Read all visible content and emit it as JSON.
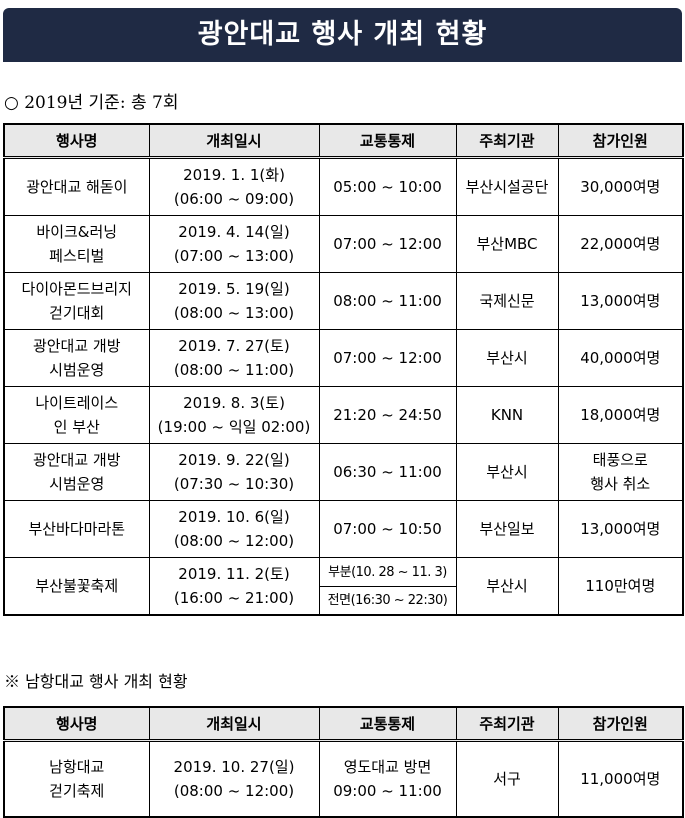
{
  "title": "광안대교 행사 개최 현황",
  "summary": "○ 2019년 기준: 총 7회",
  "headers": [
    "행사명",
    "개최일시",
    "교통통제",
    "주최기관",
    "참가인원"
  ],
  "rows": [
    {
      "name": [
        "광안대교 해돋이",
        ""
      ],
      "date": [
        "2019. 1. 1(화)",
        "(06:00 ~ 09:00)"
      ],
      "traffic": "05:00 ~ 10:00",
      "host": "부산시설공단",
      "people": [
        "30,000여명",
        ""
      ]
    },
    {
      "name": [
        "바이크&러닝",
        "페스티벌"
      ],
      "date": [
        "2019. 4. 14(일)",
        "(07:00 ~ 13:00)"
      ],
      "traffic": "07:00 ~ 12:00",
      "host": "부산MBC",
      "people": [
        "22,000여명",
        ""
      ]
    },
    {
      "name": [
        "다이아몬드브리지",
        "걷기대회"
      ],
      "date": [
        "2019. 5. 19(일)",
        "(08:00 ~ 13:00)"
      ],
      "traffic": "08:00 ~ 11:00",
      "host": "국제신문",
      "people": [
        "13,000여명",
        ""
      ]
    },
    {
      "name": [
        "광안대교 개방",
        "시범운영"
      ],
      "date": [
        "2019. 7. 27(토)",
        "(08:00 ~ 11:00)"
      ],
      "traffic": "07:00 ~ 12:00",
      "host": "부산시",
      "people": [
        "40,000여명",
        ""
      ]
    },
    {
      "name": [
        "나이트레이스",
        "인 부산"
      ],
      "date": [
        "2019. 8. 3(토)",
        "(19:00 ~ 익일 02:00)"
      ],
      "traffic": "21:20 ~ 24:50",
      "host": "KNN",
      "people": [
        "18,000여명",
        ""
      ]
    },
    {
      "name": [
        "광안대교 개방",
        "시범운영"
      ],
      "date": [
        "2019. 9. 22(일)",
        "(07:30 ~ 10:30)"
      ],
      "traffic": "06:30 ~ 11:00",
      "host": "부산시",
      "people": [
        "태풍으로",
        "행사 취소"
      ]
    },
    {
      "name": [
        "부산바다마라톤",
        ""
      ],
      "date": [
        "2019. 10. 6(일)",
        "(08:00 ~ 12:00)"
      ],
      "traffic": "07:00 ~ 10:50",
      "host": "부산일보",
      "people": [
        "13,000여명",
        ""
      ]
    }
  ],
  "last_row": {
    "name": "부산불꽃축제",
    "date": [
      "2019. 11. 2(토)",
      "(16:00 ~ 21:00)"
    ],
    "traffic": [
      "부분(10. 28 ~ 11. 3)",
      "전면(16:30 ~ 22:30)"
    ],
    "host": "부산시",
    "people": "110만여명"
  },
  "note": "※ 남항대교 행사 개최 현황",
  "table2": {
    "row": {
      "name": [
        "남항대교",
        "걷기축제"
      ],
      "date": [
        "2019. 10. 27(일)",
        "(08:00 ~ 12:00)"
      ],
      "traffic": [
        "영도대교 방면",
        "09:00 ~ 11:00"
      ],
      "host": "서구",
      "people": "11,000여명"
    }
  }
}
